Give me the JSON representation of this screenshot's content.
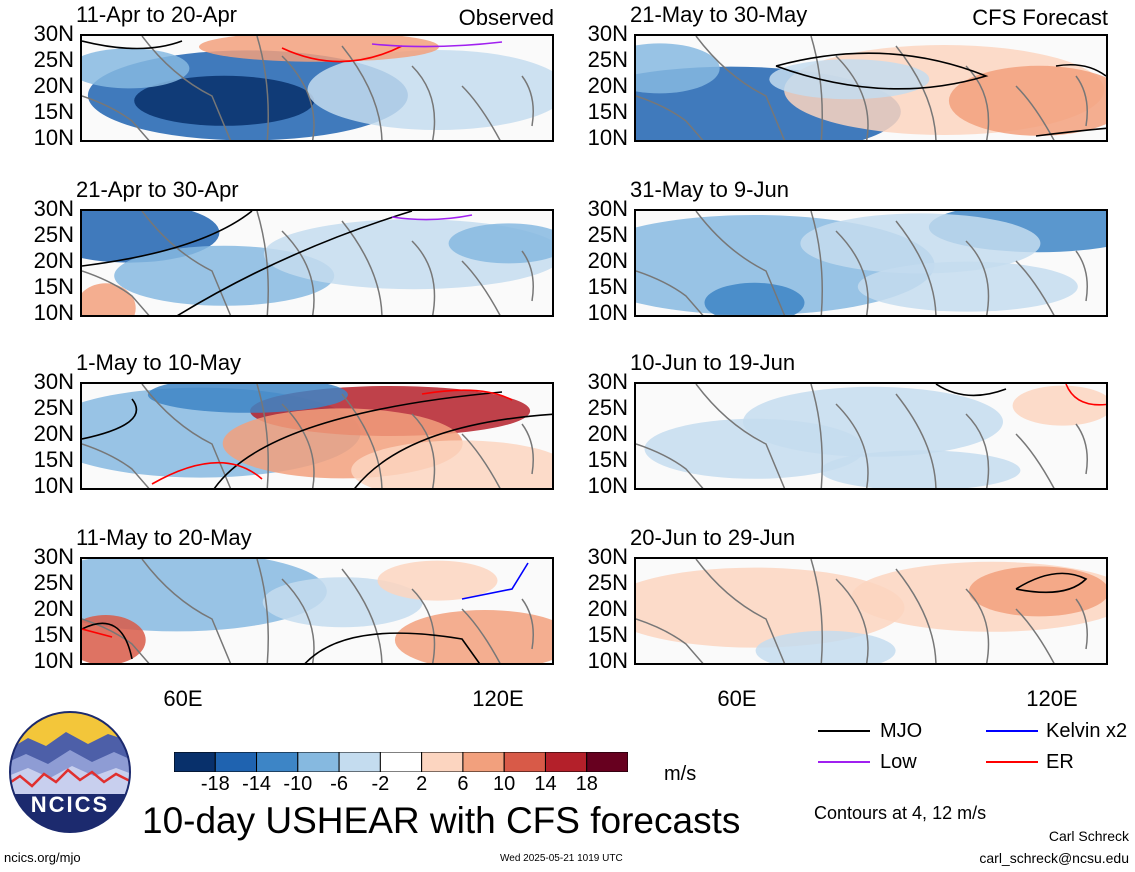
{
  "panels": [
    {
      "title": "11-Apr to 20-Apr",
      "tag": "Observed",
      "col": 0,
      "row": 0
    },
    {
      "title": "21-Apr to 30-Apr",
      "tag": "",
      "col": 0,
      "row": 1
    },
    {
      "title": "1-May to 10-May",
      "tag": "",
      "col": 0,
      "row": 2
    },
    {
      "title": "11-May to 20-May",
      "tag": "",
      "col": 0,
      "row": 3
    },
    {
      "title": "21-May to 30-May",
      "tag": "CFS Forecast",
      "col": 1,
      "row": 0
    },
    {
      "title": "31-May to 9-Jun",
      "tag": "",
      "col": 1,
      "row": 1
    },
    {
      "title": "10-Jun to 19-Jun",
      "tag": "",
      "col": 1,
      "row": 2
    },
    {
      "title": "20-Jun to 29-Jun",
      "tag": "",
      "col": 1,
      "row": 3
    }
  ],
  "lat_labels": [
    "30N",
    "25N",
    "20N",
    "15N",
    "10N"
  ],
  "lon_labels": [
    "60E",
    "120E"
  ],
  "colorbar": {
    "ticks": [
      "-18",
      "-14",
      "-10",
      "-6",
      "-2",
      "2",
      "6",
      "10",
      "14",
      "18"
    ],
    "colors": [
      "#08306b",
      "#1f63b0",
      "#3d85c6",
      "#86b9e0",
      "#c4dcef",
      "#ffffff",
      "#fcd5c0",
      "#f2a07d",
      "#d85a48",
      "#b4202a",
      "#67001f"
    ],
    "unit": "m/s"
  },
  "legend": {
    "items": [
      {
        "label": "MJO",
        "color": "#000000"
      },
      {
        "label": "Kelvin x2",
        "color": "#0000ff"
      },
      {
        "label": "Low",
        "color": "#a020f0"
      },
      {
        "label": "ER",
        "color": "#ff0000"
      }
    ],
    "note": "Contours at 4, 12 m/s"
  },
  "logo": {
    "text": "NCICS"
  },
  "main_title": "10-day USHEAR with CFS forecasts",
  "footer": {
    "left": "ncics.org/mjo",
    "center": "Wed 2025-05-21 1019 UTC",
    "author": "Carl Schreck",
    "email": "carl_schreck@ncsu.edu"
  }
}
